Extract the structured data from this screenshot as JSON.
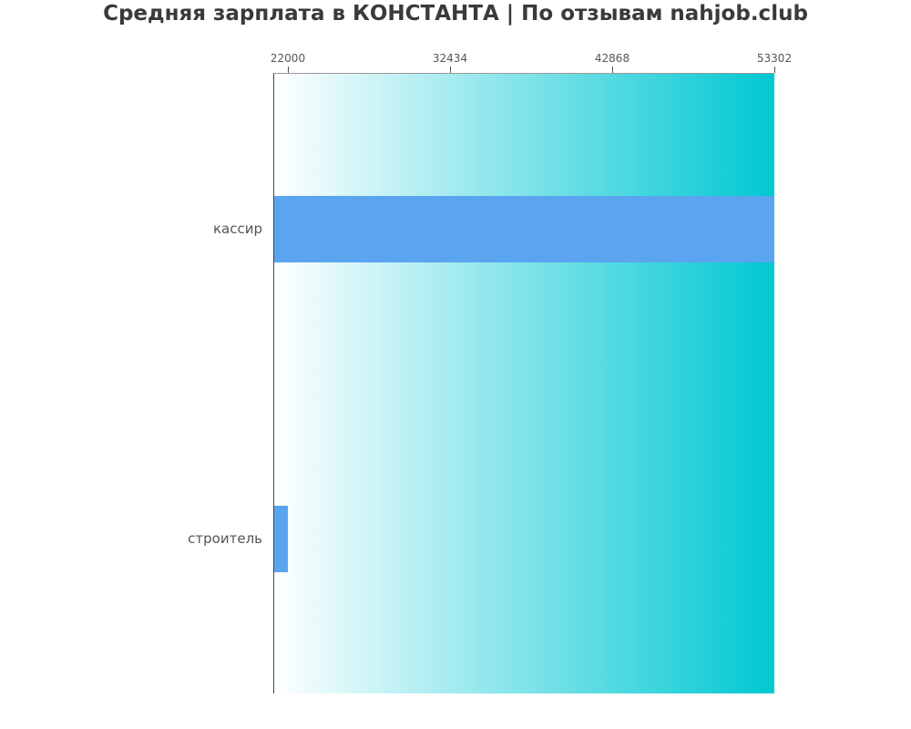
{
  "chart_data": {
    "type": "bar",
    "orientation": "horizontal",
    "title": "Средняя зарплата в КОНСТАНТА | По отзывам nahjob.club",
    "categories": [
      "кассир",
      "строитель"
    ],
    "values": [
      53302,
      22000
    ],
    "x_ticks": [
      22000,
      32434,
      42868,
      53302
    ],
    "xlim": [
      21120,
      53302
    ],
    "xlabel": "",
    "ylabel": "",
    "grid": false,
    "legend": "none",
    "tick_side": "top",
    "colors": {
      "bar": "#5ba5f0",
      "plot_gradient_left": "#ffffff",
      "plot_gradient_right": "#00c8d2",
      "title_text": "#3a3a3a",
      "tick_text": "#555555",
      "category_text": "#555555",
      "axis_line": "#444444"
    }
  }
}
